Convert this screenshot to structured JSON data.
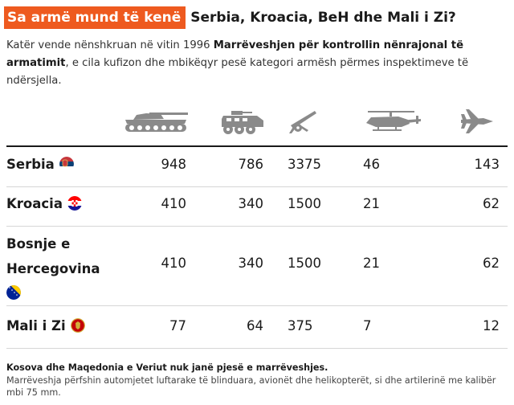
{
  "header": {
    "tag": "Sa armë mund të kenë",
    "title": "Serbia, Kroacia, BeH dhe Mali i Zi?"
  },
  "intro": {
    "part1": "Katër vende nënshkruan në vitin 1996 ",
    "bold": "Marrëveshjen për kontrollin nënrajonal të armatimit",
    "part2": ", e cila kufizon dhe mbikëqyr pesë kategori armësh përmes inspektimeve të ndërsjella."
  },
  "columns": [
    {
      "icon": "tank-icon"
    },
    {
      "icon": "armored-vehicle-icon"
    },
    {
      "icon": "artillery-icon"
    },
    {
      "icon": "helicopter-icon"
    },
    {
      "icon": "fighter-jet-icon"
    }
  ],
  "rows": [
    {
      "country": "Serbia",
      "flag": "serbia-flag-icon",
      "values": [
        "948",
        "786",
        "3375",
        "46",
        "143"
      ]
    },
    {
      "country": "Kroacia",
      "flag": "croatia-flag-icon",
      "values": [
        "410",
        "340",
        "1500",
        "21",
        "62"
      ]
    },
    {
      "country_line1": "Bosnje e",
      "country_line2": "Hercegovina",
      "flag": "bosnia-flag-icon",
      "values": [
        "410",
        "340",
        "1500",
        "21",
        "62"
      ]
    },
    {
      "country": "Mali i Zi",
      "flag": "montenegro-flag-icon",
      "values": [
        "77",
        "64",
        "375",
        "7",
        "12"
      ]
    }
  ],
  "footnote": {
    "bold": "Kosova dhe Maqedonia e Veriut nuk janë pjesë e marrëveshjes.",
    "text": "Marrëveshja përfshin automjetet luftarake të blinduara, avionët dhe helikopterët, si dhe artilerinë me kalibër mbi 75 mm."
  },
  "colors": {
    "accent": "#ee5a1f",
    "icon": "#8a8a8a"
  }
}
